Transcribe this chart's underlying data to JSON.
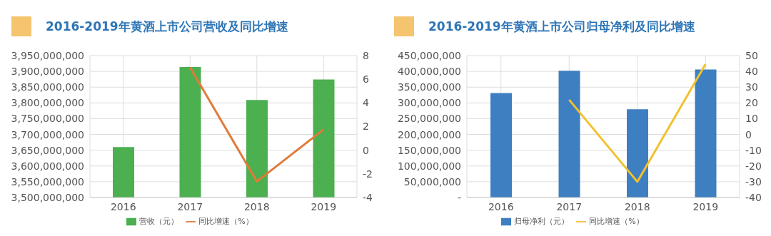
{
  "chart_data": [
    {
      "type": "bar",
      "title": "2016-2019年黄酒上市公司营收及同比增速",
      "categories": [
        "2016",
        "2017",
        "2018",
        "2019"
      ],
      "series": [
        {
          "name": "营收（元）",
          "color": "#4caf50",
          "values": [
            3660000000,
            3914000000,
            3809000000,
            3874000000
          ]
        },
        {
          "name": "同比增速（%）",
          "type": "line",
          "axis": "y2",
          "color": "#e07b39",
          "values": [
            null,
            7.0,
            -2.65,
            1.75
          ]
        }
      ],
      "ylim": [
        3500000000,
        3950000000
      ],
      "yticks": [
        {
          "value": 3500000000,
          "label": "3,500,000,000"
        },
        {
          "value": 3550000000,
          "label": "3,550,000,000"
        },
        {
          "value": 3600000000,
          "label": "3,600,000,000"
        },
        {
          "value": 3650000000,
          "label": "3,650,000,000"
        },
        {
          "value": 3700000000,
          "label": "3,700,000,000"
        },
        {
          "value": 3750000000,
          "label": "3,750,000,000"
        },
        {
          "value": 3800000000,
          "label": "3,800,000,000"
        },
        {
          "value": 3850000000,
          "label": "3,850,000,000"
        },
        {
          "value": 3900000000,
          "label": "3,900,000,000"
        },
        {
          "value": 3950000000,
          "label": "3,950,000,000"
        }
      ],
      "y2lim": [
        -4,
        8
      ],
      "y2ticks": [
        -4,
        -2,
        0,
        2,
        4,
        6,
        8
      ],
      "grid": true,
      "legend": "bottom",
      "marker": "none",
      "line_style": "solid"
    },
    {
      "type": "bar",
      "title": "2016-2019年黄酒上市公司归母净利及同比增速",
      "categories": [
        "2016",
        "2017",
        "2018",
        "2019"
      ],
      "series": [
        {
          "name": "归母净利（元）",
          "color": "#3d7fc1",
          "values": [
            331000000,
            402000000,
            280000000,
            406000000
          ]
        },
        {
          "name": "同比增速（%）",
          "type": "line",
          "axis": "y2",
          "color": "#f2c12e",
          "values": [
            null,
            22,
            -30,
            44.6
          ]
        }
      ],
      "ylim": [
        0,
        450000000
      ],
      "yticks": [
        {
          "value": 0,
          "label": "-"
        },
        {
          "value": 50000000,
          "label": "50,000,000"
        },
        {
          "value": 100000000,
          "label": "100,000,000"
        },
        {
          "value": 150000000,
          "label": "150,000,000"
        },
        {
          "value": 200000000,
          "label": "200,000,000"
        },
        {
          "value": 250000000,
          "label": "250,000,000"
        },
        {
          "value": 300000000,
          "label": "300,000,000"
        },
        {
          "value": 350000000,
          "label": "350,000,000"
        },
        {
          "value": 400000000,
          "label": "400,000,000"
        },
        {
          "value": 450000000,
          "label": "450,000,000"
        }
      ],
      "y2lim": [
        -40,
        50
      ],
      "y2ticks": [
        -40,
        -30,
        -20,
        -10,
        0,
        10,
        20,
        30,
        40,
        50
      ],
      "grid": true,
      "legend": "bottom",
      "marker": "none",
      "line_style": "solid"
    }
  ]
}
